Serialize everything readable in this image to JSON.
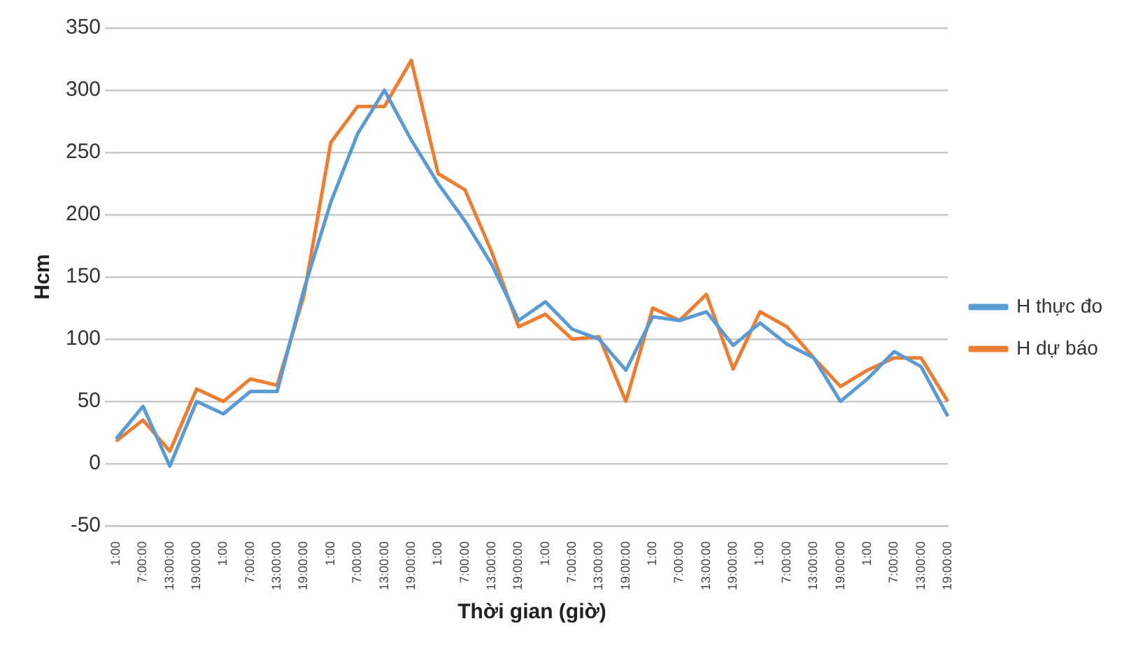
{
  "chart_data": {
    "type": "line",
    "xlabel": "Thời gian (giờ)",
    "ylabel": "Hcm",
    "categories": [
      "1:00",
      "7:00:00",
      "13:00:00",
      "19:00:00",
      "1:00",
      "7:00:00",
      "13:00:00",
      "19:00:00",
      "1:00",
      "7:00:00",
      "13:00:00",
      "19:00:00",
      "1:00",
      "7:00:00",
      "13:00:00",
      "19:00:00",
      "1:00",
      "7:00:00",
      "13:00:00",
      "19:00:00",
      "1:00",
      "7:00:00",
      "13:00:00",
      "19:00:00",
      "1:00",
      "7:00:00",
      "13:00:00",
      "19:00:00",
      "1:00",
      "7:00:00",
      "13:00:00",
      "19:00:00"
    ],
    "series": [
      {
        "name": "H thực đo",
        "color": "#5b9bd5",
        "values": [
          20,
          46,
          -2,
          50,
          40,
          58,
          58,
          140,
          210,
          265,
          300,
          260,
          225,
          195,
          160,
          115,
          130,
          108,
          100,
          75,
          118,
          115,
          122,
          95,
          113,
          96,
          85,
          50,
          68,
          90,
          78,
          38
        ]
      },
      {
        "name": "H dự báo",
        "color": "#ed7d31",
        "values": [
          18,
          35,
          10,
          60,
          50,
          68,
          63,
          135,
          258,
          287,
          287,
          324,
          233,
          220,
          170,
          110,
          120,
          100,
          102,
          50,
          125,
          115,
          136,
          76,
          122,
          110,
          85,
          62,
          75,
          85,
          85,
          50
        ]
      }
    ],
    "ylim": [
      -50,
      350
    ],
    "yticks": [
      -50,
      0,
      50,
      100,
      150,
      200,
      250,
      300,
      350
    ],
    "grid": "y",
    "legend": "right",
    "marker": "none",
    "line_style": "solid"
  }
}
